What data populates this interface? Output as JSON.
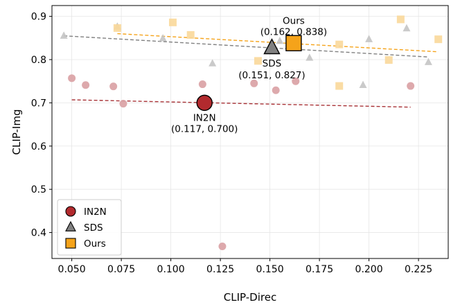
{
  "chart_data": {
    "type": "scatter",
    "title": "",
    "xlabel": "CLIP-Direc",
    "ylabel": "CLIP-Img",
    "xlim": [
      0.04,
      0.24
    ],
    "ylim": [
      0.34,
      0.925
    ],
    "xticks": [
      0.05,
      0.075,
      0.1,
      0.125,
      0.15,
      0.175,
      0.2,
      0.225
    ],
    "xtick_labels": [
      "0.050",
      "0.075",
      "0.100",
      "0.125",
      "0.150",
      "0.175",
      "0.200",
      "0.225"
    ],
    "yticks": [
      0.4,
      0.5,
      0.6,
      0.7,
      0.8,
      0.9
    ],
    "ytick_labels": [
      "0.4",
      "0.5",
      "0.6",
      "0.7",
      "0.8",
      "0.9"
    ],
    "grid": true,
    "legend_position": "lower-left",
    "series": [
      {
        "name": "IN2N",
        "marker": "circle",
        "color": "#b22a2e",
        "light_color": "#d9a0a3",
        "points": [
          {
            "x": 0.05,
            "y": 0.757
          },
          {
            "x": 0.057,
            "y": 0.741
          },
          {
            "x": 0.071,
            "y": 0.738
          },
          {
            "x": 0.076,
            "y": 0.698
          },
          {
            "x": 0.116,
            "y": 0.743
          },
          {
            "x": 0.142,
            "y": 0.745
          },
          {
            "x": 0.153,
            "y": 0.729
          },
          {
            "x": 0.163,
            "y": 0.75
          },
          {
            "x": 0.221,
            "y": 0.739
          },
          {
            "x": 0.126,
            "y": 0.368
          }
        ],
        "mean": {
          "x": 0.117,
          "y": 0.7
        },
        "mean_label": "IN2N",
        "mean_coords": "(0.117, 0.700)",
        "trend": {
          "x0": 0.05,
          "y0": 0.707,
          "x1": 0.221,
          "y1": 0.69,
          "color": "#a83236"
        }
      },
      {
        "name": "SDS",
        "marker": "triangle",
        "color": "#808080",
        "light_color": "#c4c4c4",
        "points": [
          {
            "x": 0.046,
            "y": 0.855
          },
          {
            "x": 0.073,
            "y": 0.876
          },
          {
            "x": 0.096,
            "y": 0.849
          },
          {
            "x": 0.121,
            "y": 0.791
          },
          {
            "x": 0.155,
            "y": 0.843
          },
          {
            "x": 0.17,
            "y": 0.804
          },
          {
            "x": 0.197,
            "y": 0.741
          },
          {
            "x": 0.2,
            "y": 0.847
          },
          {
            "x": 0.219,
            "y": 0.872
          },
          {
            "x": 0.23,
            "y": 0.794
          }
        ],
        "mean": {
          "x": 0.151,
          "y": 0.827
        },
        "mean_label": "SDS",
        "mean_coords": "(0.151, 0.827)",
        "trend": {
          "x0": 0.046,
          "y0": 0.855,
          "x1": 0.23,
          "y1": 0.806,
          "color": "#808080"
        }
      },
      {
        "name": "Ours",
        "marker": "square",
        "color": "#f5a31a",
        "light_color": "#f9d89a",
        "points": [
          {
            "x": 0.073,
            "y": 0.873
          },
          {
            "x": 0.101,
            "y": 0.886
          },
          {
            "x": 0.11,
            "y": 0.857
          },
          {
            "x": 0.144,
            "y": 0.797
          },
          {
            "x": 0.185,
            "y": 0.739
          },
          {
            "x": 0.185,
            "y": 0.835
          },
          {
            "x": 0.21,
            "y": 0.799
          },
          {
            "x": 0.216,
            "y": 0.893
          },
          {
            "x": 0.235,
            "y": 0.847
          }
        ],
        "mean": {
          "x": 0.162,
          "y": 0.838
        },
        "mean_label": "Ours",
        "mean_coords": "(0.162, 0.838)",
        "trend": {
          "x0": 0.073,
          "y0": 0.86,
          "x1": 0.235,
          "y1": 0.818,
          "color": "#f5a31a"
        }
      }
    ]
  }
}
